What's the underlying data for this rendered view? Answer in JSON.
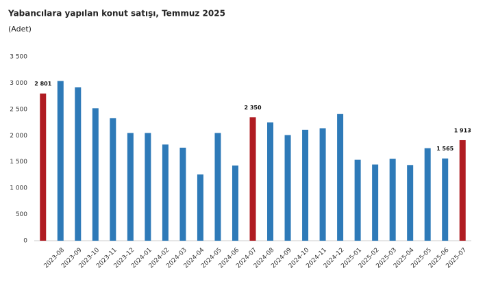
{
  "chart_data": {
    "type": "bar",
    "title": "Yabancılara yapılan konut satışı, Temmuz 2025",
    "subtitle": "(Adet)",
    "categories": [
      null,
      "2023-08",
      "2023-09",
      "2023-10",
      "2023-11",
      "2023-12",
      "2024-01",
      "2024-02",
      "2024-03",
      "2024-04",
      "2024-05",
      "2024-06",
      "2024-07",
      "2024-08",
      "2024-09",
      "2024-10",
      "2024-11",
      "2024-12",
      "2025-01",
      "2025-02",
      "2025-03",
      "2025-04",
      "2025-05",
      "2025-06",
      "2025-07"
    ],
    "values": [
      2801,
      3040,
      2920,
      2520,
      2330,
      2050,
      2050,
      1830,
      1770,
      1260,
      2050,
      1430,
      2350,
      2250,
      2010,
      2110,
      2140,
      2410,
      1540,
      1450,
      1560,
      1440,
      1760,
      1565,
      1913
    ],
    "value_labels": [
      "2 801",
      null,
      null,
      null,
      null,
      null,
      null,
      null,
      null,
      null,
      null,
      null,
      "2 350",
      null,
      null,
      null,
      null,
      null,
      null,
      null,
      null,
      null,
      null,
      "1 565",
      "1 913"
    ],
    "colors": [
      "#b01c22",
      "#2e7ab8",
      "#2e7ab8",
      "#2e7ab8",
      "#2e7ab8",
      "#2e7ab8",
      "#2e7ab8",
      "#2e7ab8",
      "#2e7ab8",
      "#2e7ab8",
      "#2e7ab8",
      "#2e7ab8",
      "#b01c22",
      "#2e7ab8",
      "#2e7ab8",
      "#2e7ab8",
      "#2e7ab8",
      "#2e7ab8",
      "#2e7ab8",
      "#2e7ab8",
      "#2e7ab8",
      "#2e7ab8",
      "#2e7ab8",
      "#2e7ab8",
      "#b01c22"
    ],
    "ylim": [
      0,
      3500
    ],
    "yticks": [
      0,
      500,
      {
        "value": 1000,
        "label": "1 000"
      },
      {
        "value": 1500,
        "label": "1 500"
      },
      {
        "value": 2000,
        "label": "2 000"
      },
      {
        "value": 2500,
        "label": "2 500"
      },
      {
        "value": 3000,
        "label": "3 000"
      },
      {
        "value": 3500,
        "label": "3 500"
      }
    ],
    "grid": false
  }
}
